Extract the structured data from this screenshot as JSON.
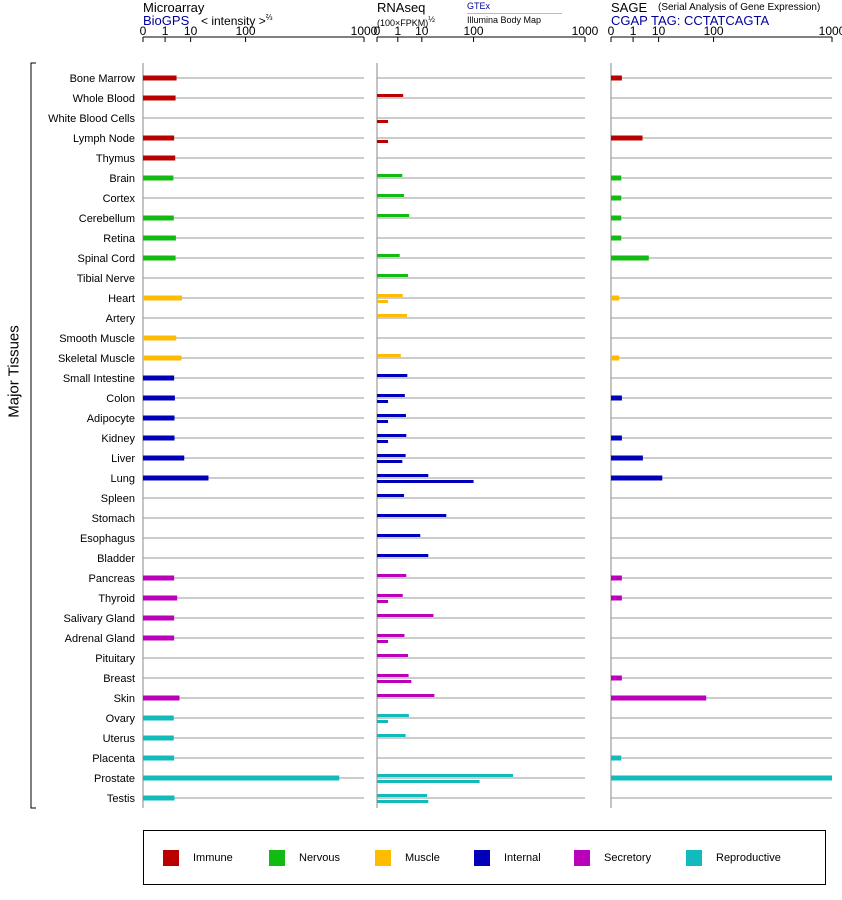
{
  "headers": {
    "microarray": "Microarray",
    "biogps": "BioGPS",
    "intensity": "< intensity >",
    "intensity_power": "⅔",
    "rnaseq": "RNAseq",
    "gtex": "GTEx",
    "fpkm": "(100×FPKM)",
    "fpkm_power": "½",
    "illumina": "Illumina Body Map",
    "sage": "SAGE",
    "sage_full": "(Serial Analysis of Gene Expression)",
    "cgap": "CGAP TAG: CCTATCAGTA",
    "y_axis_label": "Major Tissues"
  },
  "colors": {
    "Immune": "#bb0000",
    "Nervous": "#11bb11",
    "Muscle": "#ffbb00",
    "Internal": "#0000bb",
    "Secretory": "#bb00bb",
    "Reproductive": "#11bbbb",
    "gridline": "#999999",
    "link": "#000099"
  },
  "legend": [
    "Immune",
    "Nervous",
    "Muscle",
    "Internal",
    "Secretory",
    "Reproductive"
  ],
  "chart_data": {
    "type": "bar",
    "orientation": "horizontal",
    "categories": [
      "Bone Marrow",
      "Whole Blood",
      "White Blood Cells",
      "Lymph Node",
      "Thymus",
      "Brain",
      "Cortex",
      "Cerebellum",
      "Retina",
      "Spinal Cord",
      "Tibial Nerve",
      "Heart",
      "Artery",
      "Smooth Muscle",
      "Skeletal Muscle",
      "Small Intestine",
      "Colon",
      "Adipocyte",
      "Kidney",
      "Liver",
      "Lung",
      "Spleen",
      "Stomach",
      "Esophagus",
      "Bladder",
      "Pancreas",
      "Thyroid",
      "Salivary Gland",
      "Adrenal Gland",
      "Pituitary",
      "Breast",
      "Skin",
      "Ovary",
      "Uterus",
      "Placenta",
      "Prostate",
      "Testis"
    ],
    "groups": [
      "Immune",
      "Immune",
      "Immune",
      "Immune",
      "Immune",
      "Nervous",
      "Nervous",
      "Nervous",
      "Nervous",
      "Nervous",
      "Nervous",
      "Muscle",
      "Muscle",
      "Muscle",
      "Muscle",
      "Internal",
      "Internal",
      "Internal",
      "Internal",
      "Internal",
      "Internal",
      "Internal",
      "Internal",
      "Internal",
      "Internal",
      "Secretory",
      "Secretory",
      "Secretory",
      "Secretory",
      "Secretory",
      "Secretory",
      "Secretory",
      "Reproductive",
      "Reproductive",
      "Reproductive",
      "Reproductive",
      "Reproductive"
    ],
    "panels": [
      {
        "name": "Microarray",
        "ticks": [
          "0",
          "1",
          "10",
          "100",
          "1000"
        ],
        "xlim": [
          0,
          1000
        ],
        "series": [
          {
            "values": [
              3.5,
              3.2,
              null,
              2.8,
              3.1,
              2.6,
              null,
              2.7,
              3.3,
              3.2,
              null,
              5.5,
              null,
              3.4,
              5.3,
              2.8,
              3.0,
              2.9,
              2.9,
              6.5,
              26,
              null,
              null,
              null,
              null,
              2.8,
              3.7,
              2.8,
              2.8,
              null,
              null,
              4.5,
              2.7,
              2.7,
              2.8,
              700,
              2.9
            ]
          }
        ]
      },
      {
        "name": "RNAseq",
        "ticks": [
          "0",
          "1",
          "10",
          "100",
          "1000"
        ],
        "xlim": [
          0,
          1000
        ],
        "series": [
          {
            "label": "GTEx",
            "values": [
              null,
              2.0,
              null,
              null,
              null,
              1.8,
              2.2,
              3.7,
              null,
              1.3,
              3.3,
              1.9,
              3.0,
              null,
              1.5,
              3.1,
              2.4,
              2.7,
              2.8,
              2.6,
              15,
              2.2,
              37,
              9,
              15,
              2.8,
              1.9,
              20,
              2.3,
              3.3,
              3.5,
              21,
              3.6,
              2.6,
              null,
              280,
              14
            ]
          },
          {
            "label": "Illumina Body Map",
            "values": [
              null,
              null,
              0.15,
              0.15,
              null,
              null,
              null,
              null,
              null,
              null,
              null,
              0.15,
              null,
              null,
              null,
              null,
              0.15,
              0.15,
              0.15,
              1.8,
              100,
              null,
              null,
              null,
              null,
              null,
              0.15,
              null,
              0.15,
              null,
              4.5,
              null,
              0.15,
              null,
              null,
              120,
              15
            ]
          }
        ]
      },
      {
        "name": "SAGE",
        "ticks": [
          "0",
          "1",
          "10",
          "100",
          "1000"
        ],
        "xlim": [
          0,
          1000
        ],
        "series": [
          {
            "values": [
              0.12,
              null,
              null,
              2.9,
              null,
              0.1,
              0.1,
              0.1,
              0.1,
              5.0,
              null,
              0.05,
              null,
              null,
              0.05,
              null,
              0.12,
              null,
              0.12,
              3.0,
              12.5,
              null,
              null,
              null,
              null,
              0.12,
              0.12,
              null,
              null,
              null,
              0.12,
              80,
              null,
              null,
              0.1,
              1000,
              null
            ]
          }
        ]
      }
    ]
  }
}
